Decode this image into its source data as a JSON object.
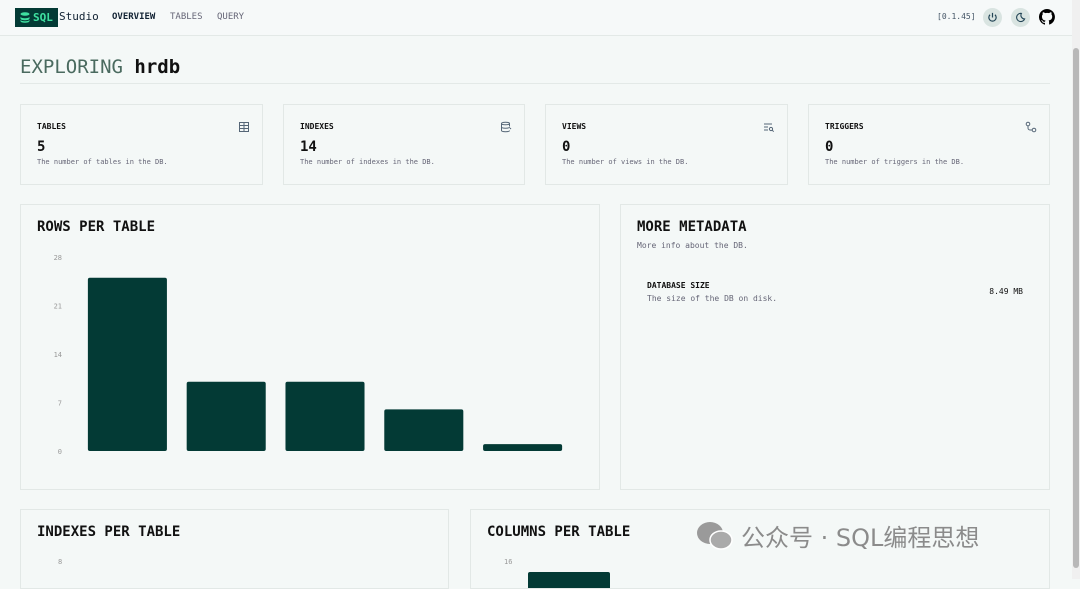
{
  "header": {
    "logo_text": "SQL",
    "app_name": "Studio",
    "nav": [
      {
        "label": "OVERVIEW",
        "active": true
      },
      {
        "label": "TABLES"
      },
      {
        "label": "QUERY"
      }
    ],
    "version": "[0.1.45]",
    "icons": [
      "power-icon",
      "moon-icon",
      "github-icon"
    ]
  },
  "page": {
    "title_prefix": "EXPLORING",
    "db_name": "hrdb"
  },
  "stats": [
    {
      "label": "TABLES",
      "value": "5",
      "desc": "The number of tables in the DB.",
      "icon": "table-icon"
    },
    {
      "label": "INDEXES",
      "value": "14",
      "desc": "The number of indexes in the DB.",
      "icon": "database-index-icon"
    },
    {
      "label": "VIEWS",
      "value": "0",
      "desc": "The number of views in the DB.",
      "icon": "view-list-icon"
    },
    {
      "label": "TRIGGERS",
      "value": "0",
      "desc": "The number of triggers in the DB.",
      "icon": "trigger-icon"
    }
  ],
  "metadata": {
    "title": "MORE METADATA",
    "subtitle": "More info about the DB.",
    "items": [
      {
        "label": "DATABASE SIZE",
        "desc": "The size of the DB on disk.",
        "value": "8.49 MB"
      }
    ]
  },
  "colors": {
    "accent": "#033a35",
    "logo_text": "#3fe0a0"
  },
  "chart_data": [
    {
      "type": "bar",
      "title": "ROWS PER TABLE",
      "categories": [
        "",
        "",
        "",
        "",
        ""
      ],
      "values": [
        25,
        10,
        10,
        6,
        1
      ],
      "ylim": [
        0,
        28
      ],
      "yticks": [
        0,
        7,
        14,
        21,
        28
      ],
      "grid": false
    },
    {
      "type": "bar",
      "title": "INDEXES PER TABLE",
      "yticks": [
        8
      ],
      "values": []
    },
    {
      "type": "bar",
      "title": "COLUMNS PER TABLE",
      "yticks": [
        16
      ],
      "values": []
    }
  ],
  "watermark": "公众号 · SQL编程思想"
}
